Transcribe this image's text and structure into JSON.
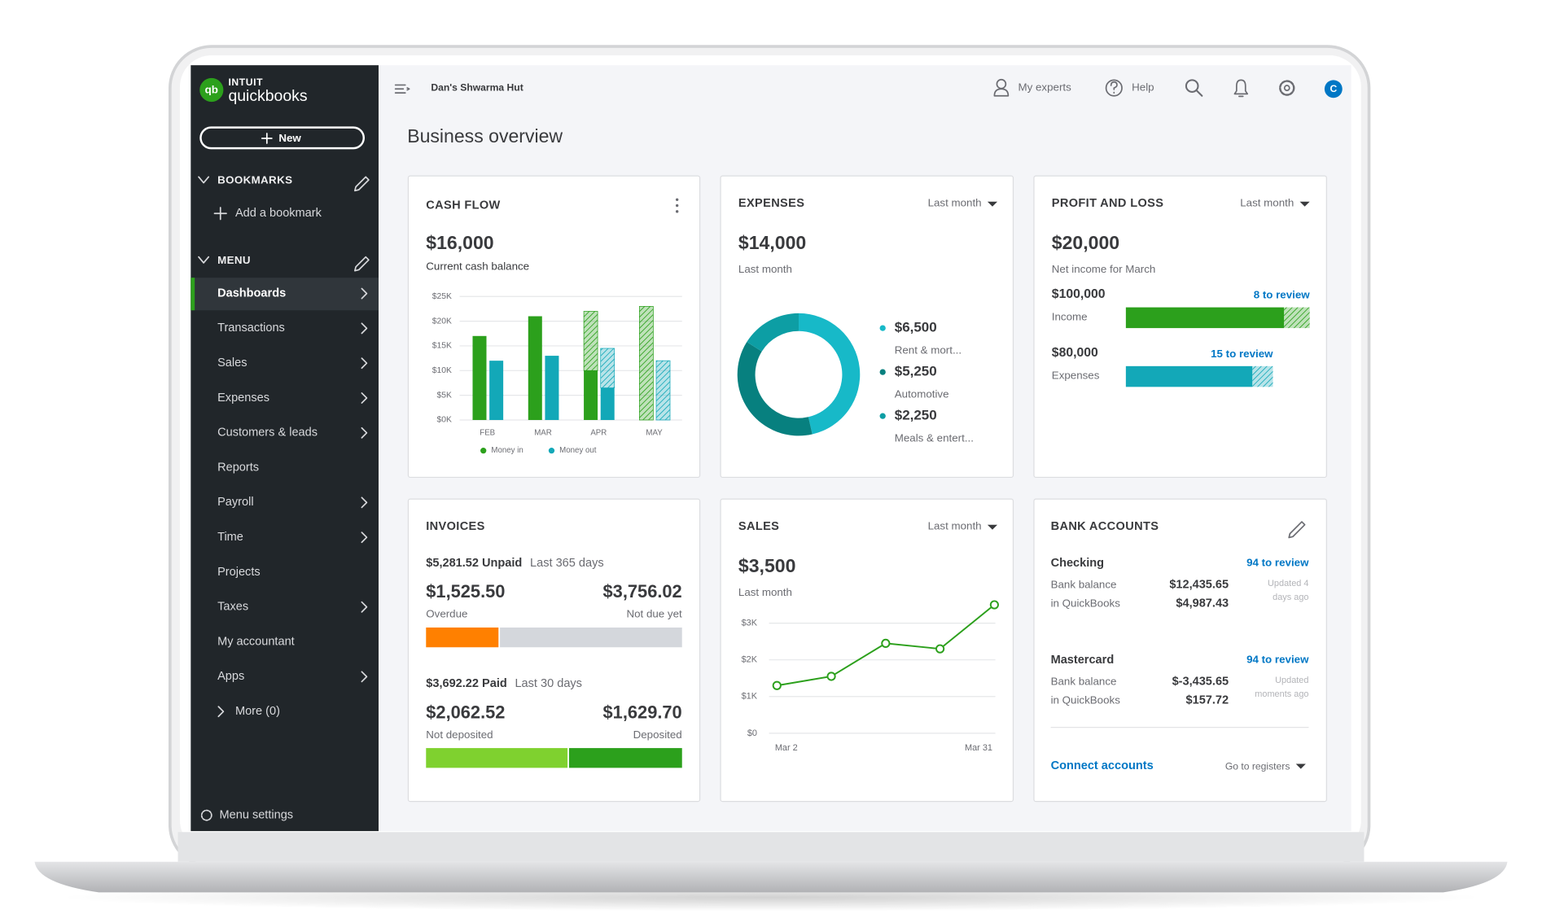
{
  "brand": {
    "mark": "qb",
    "company": "INTUIT",
    "product": "quickbooks"
  },
  "sidebar": {
    "new_button": "New",
    "bookmarks": {
      "heading": "BOOKMARKS",
      "add": "Add a bookmark"
    },
    "menu": {
      "heading": "MENU",
      "items": [
        {
          "label": "Dashboards",
          "submenu": true,
          "active": true
        },
        {
          "label": "Transactions",
          "submenu": true
        },
        {
          "label": "Sales",
          "submenu": true
        },
        {
          "label": "Expenses",
          "submenu": true
        },
        {
          "label": "Customers & leads",
          "submenu": true
        },
        {
          "label": "Reports",
          "submenu": false
        },
        {
          "label": "Payroll",
          "submenu": true
        },
        {
          "label": "Time",
          "submenu": true
        },
        {
          "label": "Projects",
          "submenu": false
        },
        {
          "label": "Taxes",
          "submenu": true
        },
        {
          "label": "My accountant",
          "submenu": false
        },
        {
          "label": "Apps",
          "submenu": true
        }
      ],
      "more": "More (0)"
    },
    "settings": "Menu settings"
  },
  "topbar": {
    "company": "Dan's Shwarma Hut",
    "links": [
      "My experts",
      "Help"
    ],
    "avatar": "C"
  },
  "page_title": "Business overview",
  "cards": {
    "cash_flow": {
      "title": "CASH FLOW",
      "amount": "$16,000",
      "caption": "Current cash balance",
      "chart_data": {
        "type": "bar",
        "categories": [
          "FEB",
          "MAR",
          "APR",
          "MAY"
        ],
        "series": [
          {
            "name": "Money in",
            "color": "#2ca01c",
            "values": [
              17000,
              21000,
              10000,
              null
            ],
            "projected": [
              null,
              null,
              12000,
              23000
            ]
          },
          {
            "name": "Money out",
            "color": "#13a8b8",
            "values": [
              12000,
              13000,
              6500,
              null
            ],
            "projected": [
              null,
              null,
              8000,
              12000
            ]
          }
        ],
        "ylim": [
          0,
          25000
        ],
        "yticks": [
          {
            "value": 0,
            "label": "$0K"
          },
          {
            "value": 5000,
            "label": "$5K"
          },
          {
            "value": 10000,
            "label": "$10K"
          },
          {
            "value": 15000,
            "label": "$15K"
          },
          {
            "value": 20000,
            "label": "$20K"
          },
          {
            "value": 25000,
            "label": "$25K"
          }
        ],
        "grid": true,
        "legend": "bottom"
      }
    },
    "expenses": {
      "title": "EXPENSES",
      "period": "Last month",
      "amount": "$14,000",
      "caption": "Last month",
      "chart_data": {
        "type": "pie",
        "donut": true,
        "categories": [
          "Rent & mort...",
          "Automotive",
          "Meals & entert..."
        ],
        "values": [
          6500,
          5250,
          2250
        ],
        "value_labels": [
          "$6,500",
          "$5,250",
          "$2,250"
        ],
        "colors": [
          "#17b9c8",
          "#07807f",
          "#0d9ea4"
        ]
      }
    },
    "profit_loss": {
      "title": "PROFIT AND LOSS",
      "period": "Last month",
      "amount": "$20,000",
      "caption": "Net income for March",
      "chart_data": {
        "type": "hbar",
        "categories": [
          "Income",
          "Expenses"
        ],
        "values": [
          100000,
          80000
        ],
        "value_labels": [
          "$100,000",
          "$80,000"
        ],
        "reviews": [
          "8 to review",
          "15 to review"
        ],
        "colors": [
          "#2ca01c",
          "#13a8b8"
        ]
      }
    },
    "invoices": {
      "title": "INVOICES",
      "groups": [
        {
          "value": 5281.52,
          "label": "$5,281.52 Unpaid",
          "period": "Last 365 days",
          "segments": [
            {
              "value": 1525.5,
              "label": "$1,525.50",
              "caption": "Overdue",
              "color": "#ff8000"
            },
            {
              "value": 3756.02,
              "label": "$3,756.02",
              "caption": "Not due yet",
              "color": "#d4d7dc"
            }
          ]
        },
        {
          "value": 3692.22,
          "label": "$3,692.22 Paid",
          "period": "Last 30 days",
          "segments": [
            {
              "value": 2062.52,
              "label": "$2,062.52",
              "caption": "Not deposited",
              "color": "#7fd12f"
            },
            {
              "value": 1629.7,
              "label": "$1,629.70",
              "caption": "Deposited",
              "color": "#2ca01c"
            }
          ]
        }
      ]
    },
    "sales": {
      "title": "SALES",
      "period": "Last month",
      "amount": "$3,500",
      "caption": "Last month",
      "chart_data": {
        "type": "line",
        "categories": [
          "Mar 2",
          null,
          null,
          null,
          "Mar 31"
        ],
        "values": [
          1300,
          1550,
          2450,
          2300,
          3500
        ],
        "color": "#2ca01c",
        "ylim": [
          0,
          3500
        ],
        "yticks": [
          {
            "value": 0,
            "label": "$0"
          },
          {
            "value": 1000,
            "label": "$1K"
          },
          {
            "value": 2000,
            "label": "$2K"
          },
          {
            "value": 3000,
            "label": "$3K"
          }
        ],
        "grid": true
      }
    },
    "bank_accounts": {
      "title": "BANK ACCOUNTS",
      "accounts": [
        {
          "name": "Checking",
          "review": "94 to review",
          "balances": [
            {
              "label": "Bank balance",
              "amount": "$12,435.65"
            },
            {
              "label": "in QuickBooks",
              "amount": "$4,987.43"
            }
          ],
          "updated": "Updated 4 days ago"
        },
        {
          "name": "Mastercard",
          "review": "94 to review",
          "balances": [
            {
              "label": "Bank balance",
              "amount": "$-3,435.65"
            },
            {
              "label": "in QuickBooks",
              "amount": "$157.72"
            }
          ],
          "updated": "Updated moments ago"
        }
      ],
      "connect": "Connect accounts",
      "registers": "Go to registers"
    }
  }
}
